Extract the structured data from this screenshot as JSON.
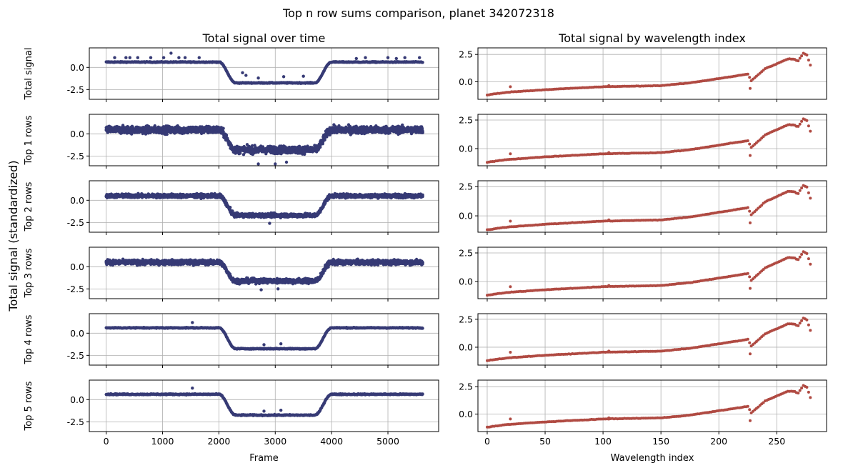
{
  "figure": {
    "title": "Top n row sums comparison, planet 342072318",
    "ylabel": "Total signal (standardized)"
  },
  "colors": {
    "time_series": "#363a75",
    "wavelength_series": "#b04a42",
    "grid": "#b0b0b0",
    "axes": "#000000"
  },
  "chart_data": [
    {
      "type": "scatter",
      "title": "Total signal over time",
      "xlabel": "Frame",
      "x_range": [
        -300,
        5900
      ],
      "x_ticks": [
        "0",
        "1000",
        "2000",
        "3000",
        "4000",
        "5000"
      ],
      "x_tick_values": [
        0,
        1000,
        2000,
        3000,
        4000,
        5000
      ],
      "grid": true,
      "frames": 5625,
      "transit": {
        "ingress_start": 2000,
        "ingress_end": 2300,
        "egress_start": 3700,
        "egress_end": 4000
      },
      "rows": [
        {
          "ylabel": "Total signal",
          "ylim": [
            -3.6,
            2.2
          ],
          "y_ticks": [
            "0.0",
            "-2.5"
          ],
          "y_tick_values": [
            0,
            -2.5
          ],
          "out_level": 0.6,
          "in_level": -1.75,
          "spread": 0.08,
          "outliers": [
            [
              150,
              1.1
            ],
            [
              350,
              1.1
            ],
            [
              420,
              1.1
            ],
            [
              560,
              1.1
            ],
            [
              790,
              1.1
            ],
            [
              1020,
              1.1
            ],
            [
              1150,
              1.6
            ],
            [
              1290,
              1.1
            ],
            [
              1400,
              1.1
            ],
            [
              1650,
              1.1
            ],
            [
              2420,
              -0.6
            ],
            [
              2480,
              -0.9
            ],
            [
              2700,
              -1.2
            ],
            [
              3150,
              -1.05
            ],
            [
              3500,
              -1.0
            ],
            [
              4440,
              1.0
            ],
            [
              4600,
              1.1
            ],
            [
              5000,
              1.1
            ],
            [
              5150,
              1.0
            ],
            [
              5300,
              1.1
            ],
            [
              5560,
              1.1
            ]
          ]
        },
        {
          "ylabel": "Top 1 rows",
          "ylim": [
            -3.6,
            2.2
          ],
          "y_ticks": [
            "0.0",
            "-2.5"
          ],
          "y_tick_values": [
            0,
            -2.5
          ],
          "out_level": 0.45,
          "in_level": -1.8,
          "spread": 0.7,
          "outliers": [
            [
              2700,
              -3.4
            ],
            [
              3000,
              -3.4
            ],
            [
              3200,
              -3.2
            ]
          ]
        },
        {
          "ylabel": "Top 2 rows",
          "ylim": [
            -3.6,
            2.2
          ],
          "y_ticks": [
            "0.0",
            "-2.5"
          ],
          "y_tick_values": [
            0,
            -2.5
          ],
          "out_level": 0.5,
          "in_level": -1.7,
          "spread": 0.35,
          "outliers": [
            [
              2200,
              -0.8
            ],
            [
              2900,
              -2.6
            ]
          ]
        },
        {
          "ylabel": "Top 3 rows",
          "ylim": [
            -3.6,
            2.2
          ],
          "y_ticks": [
            "0.0",
            "-2.5"
          ],
          "y_tick_values": [
            0,
            -2.5
          ],
          "out_level": 0.5,
          "in_level": -1.6,
          "spread": 0.45,
          "outliers": [
            [
              2750,
              -2.6
            ],
            [
              3050,
              -2.5
            ]
          ]
        },
        {
          "ylabel": "Top 4 rows",
          "ylim": [
            -3.6,
            2.2
          ],
          "y_ticks": [
            "0.0",
            "-2.5"
          ],
          "y_tick_values": [
            0,
            -2.5
          ],
          "out_level": 0.6,
          "in_level": -1.75,
          "spread": 0.08,
          "outliers": [
            [
              1530,
              1.2
            ],
            [
              2800,
              -1.3
            ],
            [
              3100,
              -1.2
            ]
          ]
        },
        {
          "ylabel": "Top 5 rows",
          "ylim": [
            -3.6,
            2.2
          ],
          "y_ticks": [
            "0.0",
            "-2.5"
          ],
          "y_tick_values": [
            0,
            -2.5
          ],
          "out_level": 0.6,
          "in_level": -1.75,
          "spread": 0.1,
          "outliers": [
            [
              1530,
              1.3
            ],
            [
              2800,
              -1.3
            ],
            [
              3100,
              -1.2
            ]
          ]
        }
      ]
    },
    {
      "type": "scatter",
      "title": "Total signal by wavelength index",
      "xlabel": "Wavelength index",
      "x_range": [
        -8,
        293
      ],
      "x_ticks": [
        "0",
        "50",
        "100",
        "150",
        "200",
        "250"
      ],
      "x_tick_values": [
        0,
        50,
        100,
        150,
        200,
        250
      ],
      "grid": true,
      "profile": [
        [
          0,
          -1.2
        ],
        [
          10,
          -1.05
        ],
        [
          18,
          -0.95
        ],
        [
          50,
          -0.72
        ],
        [
          100,
          -0.45
        ],
        [
          150,
          -0.35
        ],
        [
          175,
          -0.1
        ],
        [
          200,
          0.3
        ],
        [
          225,
          0.7
        ],
        [
          228,
          0.1
        ],
        [
          240,
          1.2
        ],
        [
          260,
          2.1
        ],
        [
          266,
          2.05
        ],
        [
          268,
          1.85
        ],
        [
          273,
          2.6
        ],
        [
          276,
          2.45
        ],
        [
          280,
          1.2
        ]
      ],
      "dips": [
        [
          20,
          -0.45
        ],
        [
          105,
          -0.35
        ],
        [
          227,
          -0.6
        ]
      ],
      "rows": [
        {
          "ylim": [
            -1.6,
            3.1
          ],
          "y_ticks": [
            "2.5",
            "0.0"
          ],
          "y_tick_values": [
            2.5,
            0
          ]
        },
        {
          "ylim": [
            -1.5,
            3.0
          ],
          "y_ticks": [
            "2.5",
            "0.0"
          ],
          "y_tick_values": [
            2.5,
            0
          ]
        },
        {
          "ylim": [
            -1.4,
            3.0
          ],
          "y_ticks": [
            "2.5",
            "0.0"
          ],
          "y_tick_values": [
            2.5,
            0
          ]
        },
        {
          "ylim": [
            -1.5,
            3.0
          ],
          "y_ticks": [
            "2.5",
            "0.0"
          ],
          "y_tick_values": [
            2.5,
            0
          ]
        },
        {
          "ylim": [
            -1.6,
            3.0
          ],
          "y_ticks": [
            "2.5",
            "0.0"
          ],
          "y_tick_values": [
            2.5,
            0
          ]
        },
        {
          "ylim": [
            -1.6,
            3.1
          ],
          "y_ticks": [
            "2.5",
            "0.0"
          ],
          "y_tick_values": [
            2.5,
            0
          ]
        }
      ]
    }
  ]
}
